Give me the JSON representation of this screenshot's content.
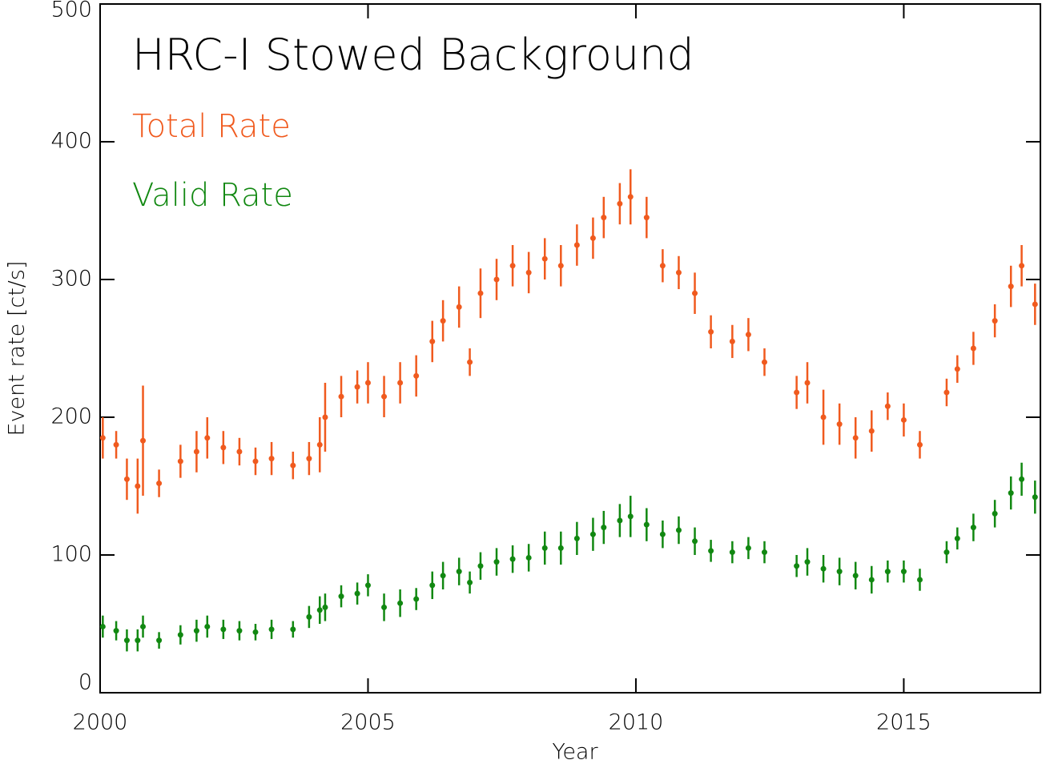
{
  "chart_data": {
    "type": "scatter",
    "title": "HRC-I Stowed Background",
    "x_label": "Year",
    "y_label": "Event rate [ct/s]",
    "xlim": [
      2000,
      2017.55
    ],
    "xticks": [
      2000,
      2005,
      2010,
      2015
    ],
    "ylim": [
      0,
      500
    ],
    "yticks": [
      0,
      100,
      200,
      300,
      400,
      500
    ],
    "x": [
      2000.05,
      2000.3,
      2000.5,
      2000.7,
      2000.8,
      2001.1,
      2001.5,
      2001.8,
      2002.0,
      2002.3,
      2002.6,
      2002.9,
      2003.2,
      2003.6,
      2003.9,
      2004.1,
      2004.2,
      2004.5,
      2004.8,
      2005.0,
      2005.3,
      2005.6,
      2005.9,
      2006.2,
      2006.4,
      2006.7,
      2006.9,
      2007.1,
      2007.4,
      2007.7,
      2008.0,
      2008.3,
      2008.6,
      2008.9,
      2009.2,
      2009.4,
      2009.7,
      2009.9,
      2010.2,
      2010.5,
      2010.8,
      2011.1,
      2011.4,
      2011.8,
      2012.1,
      2012.4,
      2013.0,
      2013.2,
      2013.5,
      2013.8,
      2014.1,
      2014.4,
      2014.7,
      2015.0,
      2015.3,
      2015.8,
      2016.0,
      2016.3,
      2016.7,
      2017.0,
      2017.2,
      2017.45
    ],
    "series": [
      {
        "name": "Total Rate",
        "color": "#f05a1e",
        "values": [
          185,
          180,
          155,
          150,
          183,
          152,
          168,
          175,
          185,
          178,
          175,
          168,
          170,
          165,
          170,
          180,
          200,
          215,
          222,
          225,
          215,
          225,
          230,
          255,
          270,
          280,
          240,
          290,
          300,
          310,
          305,
          315,
          310,
          325,
          330,
          345,
          355,
          360,
          345,
          310,
          305,
          290,
          262,
          255,
          260,
          240,
          218,
          225,
          200,
          195,
          185,
          190,
          208,
          198,
          180,
          218,
          235,
          250,
          270,
          295,
          310,
          282
        ],
        "errors": [
          15,
          10,
          15,
          20,
          40,
          10,
          12,
          15,
          15,
          12,
          10,
          10,
          12,
          10,
          12,
          20,
          25,
          15,
          12,
          15,
          15,
          15,
          15,
          15,
          15,
          15,
          10,
          18,
          15,
          15,
          15,
          15,
          15,
          15,
          15,
          15,
          15,
          20,
          15,
          12,
          12,
          15,
          12,
          12,
          12,
          10,
          12,
          15,
          20,
          15,
          15,
          15,
          10,
          12,
          10,
          10,
          10,
          12,
          12,
          15,
          15,
          15
        ]
      },
      {
        "name": "Valid Rate",
        "color": "#118811",
        "values": [
          48,
          45,
          38,
          38,
          48,
          38,
          42,
          45,
          48,
          46,
          45,
          44,
          46,
          46,
          55,
          60,
          62,
          70,
          72,
          78,
          62,
          65,
          68,
          78,
          85,
          88,
          80,
          92,
          95,
          97,
          98,
          105,
          105,
          112,
          115,
          120,
          125,
          128,
          122,
          115,
          118,
          110,
          103,
          102,
          105,
          102,
          92,
          95,
          90,
          88,
          85,
          82,
          88,
          88,
          82,
          102,
          112,
          120,
          130,
          145,
          155,
          142
        ],
        "errors": [
          8,
          7,
          8,
          8,
          8,
          6,
          7,
          8,
          8,
          7,
          7,
          6,
          7,
          6,
          8,
          10,
          10,
          8,
          8,
          8,
          10,
          10,
          8,
          10,
          10,
          10,
          8,
          10,
          10,
          10,
          10,
          12,
          12,
          12,
          12,
          12,
          12,
          15,
          12,
          10,
          10,
          10,
          8,
          8,
          8,
          8,
          8,
          10,
          10,
          10,
          10,
          10,
          8,
          8,
          8,
          8,
          8,
          10,
          10,
          12,
          12,
          12
        ]
      }
    ]
  }
}
